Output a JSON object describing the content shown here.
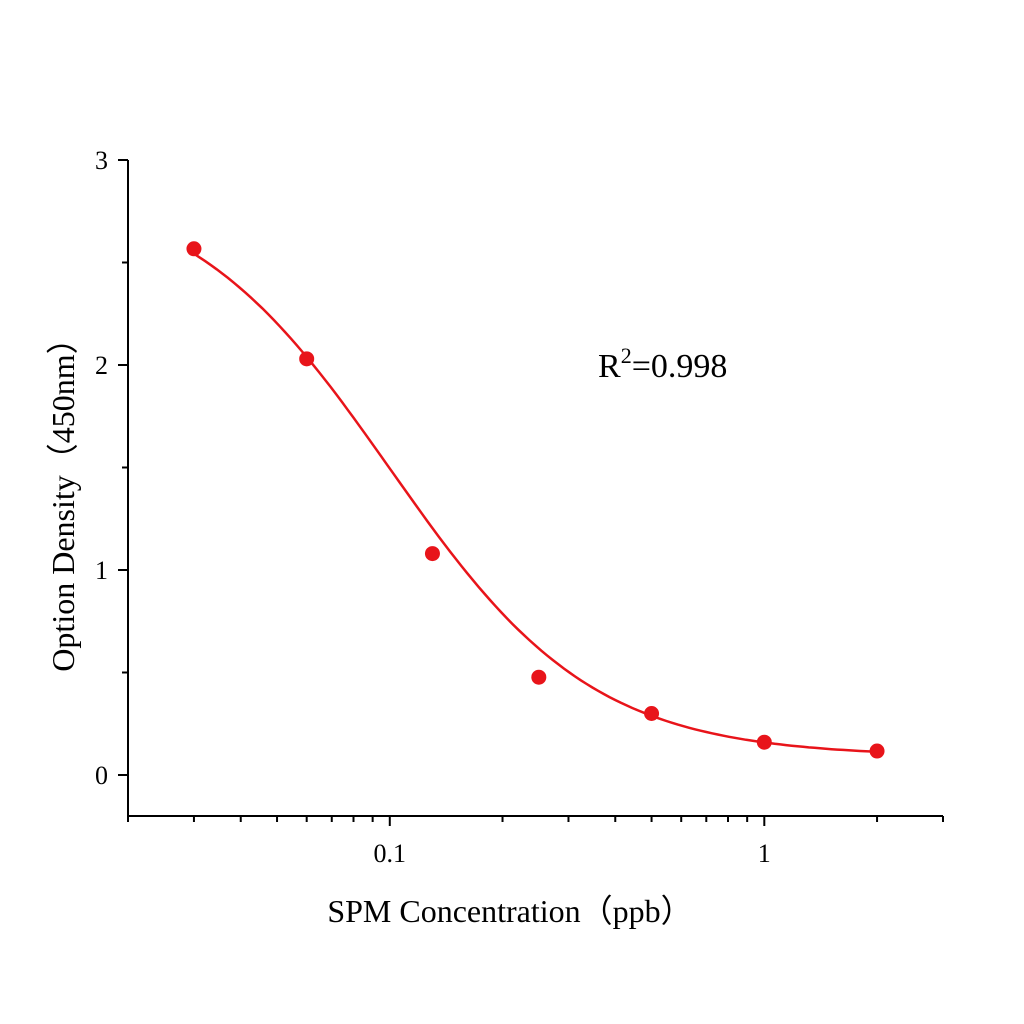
{
  "chart_data": {
    "type": "scatter",
    "title": "",
    "xlabel": "SPM Concentration（ppb）",
    "ylabel": "Option Density（450nm）",
    "xscale": "log",
    "xlim": [
      0.02,
      3
    ],
    "ylim": [
      -0.2,
      3
    ],
    "x_ticks": [
      {
        "value": 0.1,
        "label": "0.1"
      },
      {
        "value": 1,
        "label": "1"
      }
    ],
    "y_ticks": [
      {
        "value": 0,
        "label": "0"
      },
      {
        "value": 1,
        "label": "1"
      },
      {
        "value": 2,
        "label": "2"
      },
      {
        "value": 3,
        "label": "3"
      }
    ],
    "grid": false,
    "series": [
      {
        "x": [
          0.03,
          0.06,
          0.13,
          0.25,
          0.5,
          1,
          2
        ],
        "y": [
          2.567,
          2.03,
          1.08,
          0.477,
          0.3,
          0.16,
          0.117
        ],
        "marker": "circle",
        "fit": "sigmoidal curve"
      }
    ],
    "annotation": {
      "text": "R",
      "sup": "2",
      "rest": "=0.998"
    },
    "colors": {
      "series": "#e8141a",
      "axis": "#000000"
    }
  }
}
